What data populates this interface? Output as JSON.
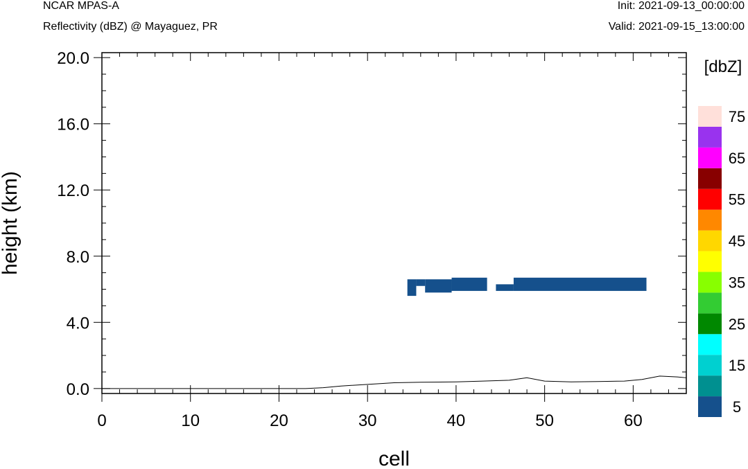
{
  "header": {
    "model": "NCAR MPAS-A",
    "field": "Reflectivity (dBZ) @ Mayaguez, PR",
    "init": "Init: 2021-09-13_00:00:00",
    "valid": "Valid: 2021-09-15_13:00:00"
  },
  "chart_data": {
    "type": "heatmap",
    "xlabel": "cell",
    "ylabel": "height (km)",
    "xlim": [
      0,
      66
    ],
    "ylim": [
      -0.3,
      20.3
    ],
    "x_ticks": [
      0,
      10,
      20,
      30,
      40,
      50,
      60
    ],
    "y_ticks": [
      0.0,
      4.0,
      8.0,
      12.0,
      16.0,
      20.0
    ],
    "y_tick_labels": [
      "0.0",
      "4.0",
      "8.0",
      "12.0",
      "16.0",
      "20.0"
    ],
    "colorbar": {
      "title": "[dbZ]",
      "levels": [
        5,
        10,
        15,
        20,
        25,
        30,
        35,
        40,
        45,
        50,
        55,
        60,
        65,
        70,
        75
      ],
      "tick_labels": [
        "5",
        "15",
        "25",
        "35",
        "45",
        "55",
        "65",
        "75"
      ],
      "colors": [
        "#15508c",
        "#009090",
        "#00d0d0",
        "#00ffff",
        "#008800",
        "#33cc33",
        "#88ff00",
        "#ffff00",
        "#ffd700",
        "#ff8800",
        "#ff0000",
        "#880000",
        "#ff00ff",
        "#9933ee",
        "#ffe0da"
      ]
    },
    "reflectivity_cells": [
      {
        "x0": 34.5,
        "x1": 35.5,
        "y0": 5.6,
        "y1": 6.6,
        "dbz": 5
      },
      {
        "x0": 35.5,
        "x1": 36.5,
        "y0": 6.2,
        "y1": 6.6,
        "dbz": 5
      },
      {
        "x0": 36.5,
        "x1": 39.5,
        "y0": 5.8,
        "y1": 6.6,
        "dbz": 5
      },
      {
        "x0": 39.5,
        "x1": 43.5,
        "y0": 5.9,
        "y1": 6.7,
        "dbz": 5
      },
      {
        "x0": 44.5,
        "x1": 46.5,
        "y0": 5.9,
        "y1": 6.3,
        "dbz": 5
      },
      {
        "x0": 46.5,
        "x1": 61.5,
        "y0": 5.9,
        "y1": 6.7,
        "dbz": 5
      }
    ],
    "terrain": {
      "x": [
        0,
        5,
        10,
        15,
        20,
        23,
        25,
        27,
        30,
        33,
        36,
        40,
        43,
        46,
        48,
        50,
        53,
        56,
        59,
        61,
        63,
        65,
        66
      ],
      "y": [
        0,
        0,
        0,
        0,
        0,
        0,
        0.05,
        0.15,
        0.25,
        0.35,
        0.38,
        0.4,
        0.45,
        0.5,
        0.65,
        0.45,
        0.4,
        0.42,
        0.45,
        0.55,
        0.75,
        0.7,
        0.65
      ]
    }
  }
}
